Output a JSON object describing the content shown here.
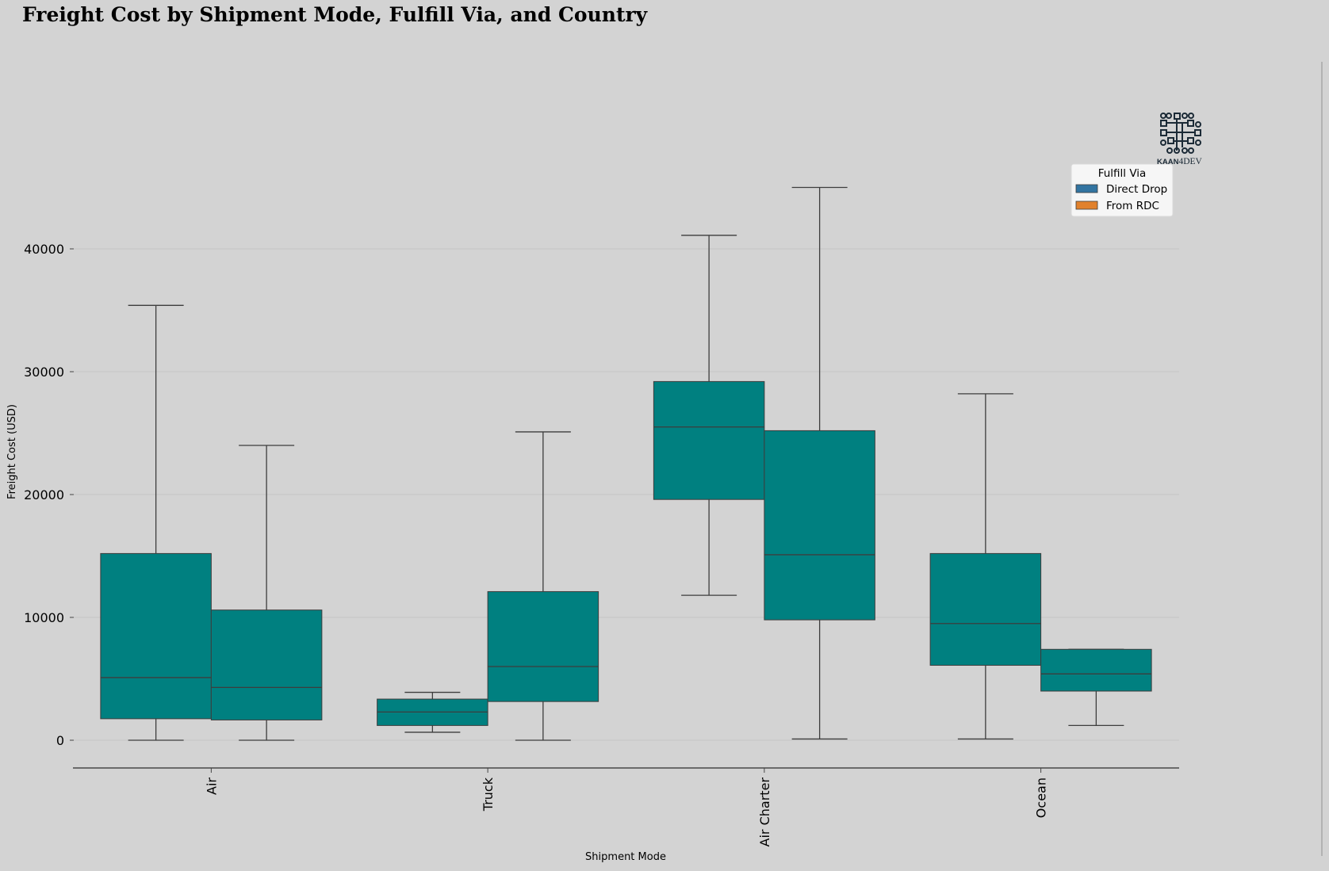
{
  "chart_data": {
    "type": "box",
    "title": "Freight Cost by Shipment Mode, Fulfill Via, and Country",
    "xlabel": "Shipment Mode",
    "ylabel": "Freight Cost (USD)",
    "ylim": [
      -2200,
      47000
    ],
    "yticks": [
      0,
      10000,
      20000,
      30000,
      40000
    ],
    "grid": "horizontal",
    "legend_placement": "top-right",
    "categories": [
      "Air",
      "Truck",
      "Air Charter",
      "Ocean"
    ],
    "series": [
      {
        "name": "Direct Drop",
        "legend_color": "#3274a1",
        "box_color": "#008080",
        "boxes": [
          {
            "min": 0,
            "q1": 1750,
            "median": 5100,
            "q3": 15200,
            "max": 35400
          },
          {
            "min": 650,
            "q1": 1200,
            "median": 2300,
            "q3": 3350,
            "max": 3900
          },
          {
            "min": 11800,
            "q1": 19600,
            "median": 25500,
            "q3": 29200,
            "max": 41100
          },
          {
            "min": 100,
            "q1": 6100,
            "median": 9500,
            "q3": 15200,
            "max": 28200
          }
        ]
      },
      {
        "name": "From RDC",
        "legend_color": "#e1812c",
        "box_color": "#008080",
        "boxes": [
          {
            "min": 0,
            "q1": 1650,
            "median": 4300,
            "q3": 10600,
            "max": 24000
          },
          {
            "min": 0,
            "q1": 3150,
            "median": 6000,
            "q3": 12100,
            "max": 25100
          },
          {
            "min": 100,
            "q1": 9800,
            "median": 15100,
            "q3": 25200,
            "max": 45000
          },
          {
            "min": 1200,
            "q1": 4000,
            "median": 5400,
            "q3": 7400,
            "max": 7400
          }
        ]
      }
    ]
  },
  "legend": {
    "title": "Fulfill Via"
  },
  "logo": {
    "text_bold": "KAAN",
    "text_regular": "4DEV",
    "color": "#1b2a36"
  }
}
